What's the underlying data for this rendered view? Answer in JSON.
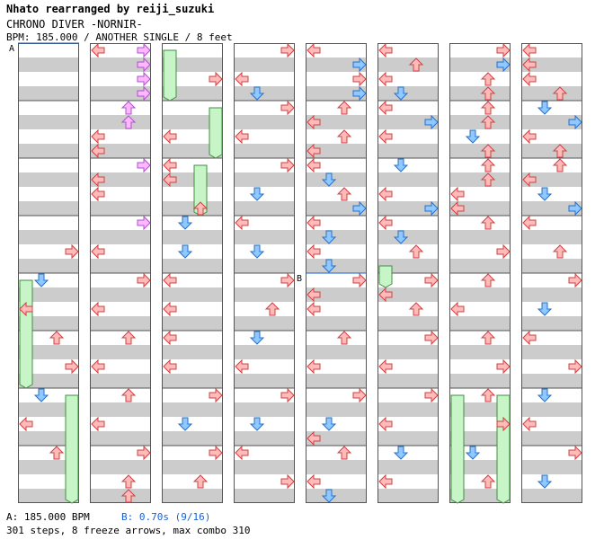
{
  "header": {
    "artist": "Nhato rearranged by reiji_suzuki",
    "title": "CHRONO DIVER -NORNIR-",
    "info": "BPM: 185.000 / ANOTHER SINGLE / 8 feet"
  },
  "markers": {
    "a_label": "A",
    "b_label": "B"
  },
  "footer": {
    "bpm_a": "A: 185.000 BPM",
    "stop_b": "B: 0.70s (9/16)",
    "stats": "301 steps, 8 freeze arrows, max combo 310"
  },
  "colors": {
    "band_gray": "#cccccc",
    "border": "#555555",
    "arrow_red_fill": "#ffbaba",
    "arrow_red_stroke": "#d04040",
    "arrow_blue_fill": "#8fc8ff",
    "arrow_blue_stroke": "#2a70c8",
    "arrow_pink_fill": "#ffb8ff",
    "arrow_pink_stroke": "#b050c8",
    "freeze_fill": "#c8f5c8",
    "freeze_stroke": "#409040",
    "stop_line": "#1a5fd0",
    "footer_b_color": "#1a5fd0"
  },
  "chart_layout": {
    "columns": 8,
    "measures_per_column": 8,
    "lanes": [
      "left",
      "down",
      "up",
      "right"
    ]
  },
  "chart_data": {
    "type": "table",
    "difficulty": "ANOTHER SINGLE",
    "feet": 8,
    "bpm": 185.0,
    "steps": 301,
    "freeze_arrows": 8,
    "max_combo": 310,
    "stop_b_seconds": 0.7,
    "columns": [
      {
        "notes": [
          [
            14,
            3
          ],
          [
            16,
            1
          ],
          [
            18,
            0
          ],
          [
            20,
            2
          ],
          [
            22,
            3
          ],
          [
            24,
            1
          ],
          [
            26,
            0
          ],
          [
            28,
            2
          ]
        ],
        "freezes": [
          [
            16,
            0,
            24
          ],
          [
            24,
            3,
            32
          ]
        ]
      },
      {
        "notes": [
          [
            0,
            0
          ],
          [
            0,
            3
          ],
          [
            1,
            3
          ],
          [
            2,
            3
          ],
          [
            3,
            3
          ],
          [
            4,
            2
          ],
          [
            5,
            2
          ],
          [
            6,
            0
          ],
          [
            7,
            0
          ],
          [
            8,
            3
          ],
          [
            9,
            0
          ],
          [
            10,
            0
          ],
          [
            12,
            3
          ],
          [
            14,
            0
          ],
          [
            16,
            3
          ],
          [
            18,
            0
          ],
          [
            20,
            2
          ],
          [
            22,
            0
          ],
          [
            24,
            2
          ],
          [
            26,
            0
          ],
          [
            28,
            3
          ],
          [
            30,
            2
          ],
          [
            31,
            2
          ]
        ],
        "freezes": []
      },
      {
        "notes": [
          [
            2,
            3
          ],
          [
            6,
            0
          ],
          [
            8,
            0
          ],
          [
            9,
            0
          ],
          [
            11,
            2
          ],
          [
            12,
            1
          ],
          [
            14,
            1
          ],
          [
            16,
            0
          ],
          [
            18,
            0
          ],
          [
            20,
            0
          ],
          [
            22,
            0
          ],
          [
            24,
            3
          ],
          [
            26,
            1
          ],
          [
            28,
            3
          ],
          [
            30,
            2
          ]
        ],
        "freezes": [
          [
            0,
            0,
            4
          ],
          [
            4,
            3,
            8
          ],
          [
            8,
            2,
            12
          ]
        ]
      },
      {
        "notes": [
          [
            0,
            3
          ],
          [
            2,
            0
          ],
          [
            3,
            1
          ],
          [
            4,
            3
          ],
          [
            6,
            0
          ],
          [
            8,
            3
          ],
          [
            10,
            1
          ],
          [
            12,
            0
          ],
          [
            14,
            1
          ],
          [
            16,
            3
          ],
          [
            18,
            2
          ],
          [
            20,
            1
          ],
          [
            22,
            0
          ],
          [
            24,
            3
          ],
          [
            26,
            1
          ],
          [
            28,
            0
          ],
          [
            30,
            3
          ]
        ],
        "freezes": []
      },
      {
        "notes": [
          [
            0,
            0
          ],
          [
            1,
            3
          ],
          [
            2,
            3
          ],
          [
            3,
            3
          ],
          [
            4,
            2
          ],
          [
            5,
            0
          ],
          [
            6,
            2
          ],
          [
            7,
            0
          ],
          [
            8,
            0
          ],
          [
            9,
            1
          ],
          [
            10,
            2
          ],
          [
            11,
            3
          ],
          [
            12,
            0
          ],
          [
            13,
            1
          ],
          [
            14,
            0
          ],
          [
            15,
            1
          ],
          [
            16,
            3
          ],
          [
            17,
            0
          ],
          [
            18,
            0
          ],
          [
            20,
            2
          ],
          [
            22,
            0
          ],
          [
            24,
            3
          ],
          [
            26,
            1
          ],
          [
            27,
            0
          ],
          [
            28,
            2
          ],
          [
            30,
            0
          ],
          [
            31,
            1
          ]
        ],
        "freezes": []
      },
      {
        "notes": [
          [
            0,
            0
          ],
          [
            1,
            2
          ],
          [
            2,
            0
          ],
          [
            3,
            1
          ],
          [
            4,
            0
          ],
          [
            5,
            3
          ],
          [
            6,
            0
          ],
          [
            8,
            1
          ],
          [
            10,
            0
          ],
          [
            11,
            3
          ],
          [
            12,
            0
          ],
          [
            13,
            1
          ],
          [
            14,
            2
          ],
          [
            16,
            3
          ],
          [
            17,
            0
          ],
          [
            18,
            2
          ],
          [
            20,
            3
          ],
          [
            22,
            0
          ],
          [
            24,
            3
          ],
          [
            26,
            0
          ],
          [
            28,
            1
          ],
          [
            30,
            0
          ]
        ],
        "freezes": [
          [
            15,
            0,
            17
          ]
        ]
      },
      {
        "notes": [
          [
            0,
            3
          ],
          [
            1,
            3
          ],
          [
            2,
            2
          ],
          [
            3,
            2
          ],
          [
            4,
            2
          ],
          [
            5,
            2
          ],
          [
            6,
            1
          ],
          [
            7,
            2
          ],
          [
            8,
            2
          ],
          [
            9,
            2
          ],
          [
            10,
            0
          ],
          [
            11,
            0
          ],
          [
            12,
            2
          ],
          [
            14,
            3
          ],
          [
            16,
            2
          ],
          [
            18,
            0
          ],
          [
            20,
            2
          ],
          [
            22,
            3
          ],
          [
            24,
            2
          ],
          [
            26,
            3
          ],
          [
            28,
            1
          ],
          [
            30,
            2
          ]
        ],
        "freezes": [
          [
            24,
            0,
            32
          ],
          [
            24,
            3,
            32
          ]
        ]
      },
      {
        "notes": [
          [
            0,
            0
          ],
          [
            1,
            0
          ],
          [
            2,
            0
          ],
          [
            3,
            2
          ],
          [
            4,
            1
          ],
          [
            5,
            3
          ],
          [
            6,
            0
          ],
          [
            7,
            2
          ],
          [
            8,
            2
          ],
          [
            9,
            0
          ],
          [
            10,
            1
          ],
          [
            11,
            3
          ],
          [
            12,
            0
          ],
          [
            14,
            2
          ],
          [
            16,
            3
          ],
          [
            18,
            1
          ],
          [
            20,
            0
          ],
          [
            22,
            3
          ],
          [
            24,
            1
          ],
          [
            26,
            0
          ],
          [
            28,
            3
          ],
          [
            30,
            1
          ]
        ],
        "freezes": []
      }
    ]
  }
}
